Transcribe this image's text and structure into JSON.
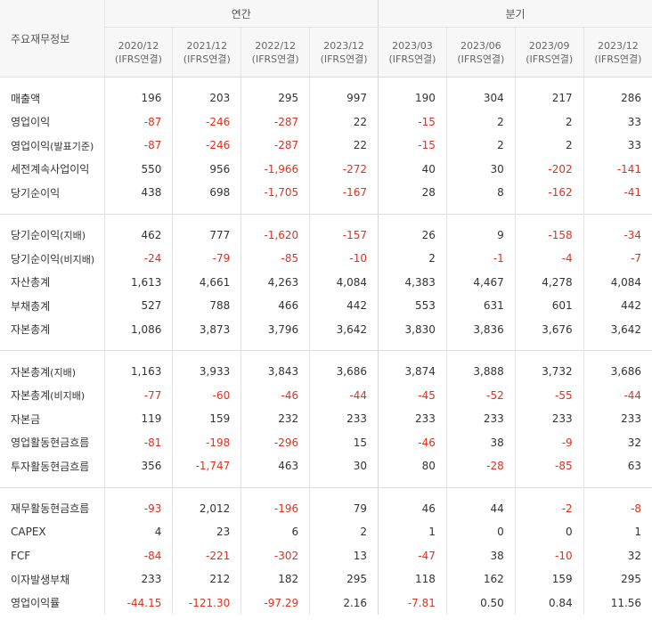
{
  "header": {
    "label": "주요재무정보",
    "annual": "연간",
    "quarterly": "분기",
    "periods": [
      {
        "date": "2020/12",
        "basis": "(IFRS연결)"
      },
      {
        "date": "2021/12",
        "basis": "(IFRS연결)"
      },
      {
        "date": "2022/12",
        "basis": "(IFRS연결)"
      },
      {
        "date": "2023/12",
        "basis": "(IFRS연결)"
      },
      {
        "date": "2023/03",
        "basis": "(IFRS연결)"
      },
      {
        "date": "2023/06",
        "basis": "(IFRS연결)"
      },
      {
        "date": "2023/09",
        "basis": "(IFRS연결)"
      },
      {
        "date": "2023/12",
        "basis": "(IFRS연결)"
      }
    ]
  },
  "colors": {
    "negative": "#e0301e",
    "text": "#333333",
    "header_bg": "#f7f7f7"
  },
  "groups": [
    {
      "rows": [
        {
          "label": "매출액",
          "sub": "",
          "values": [
            "196",
            "203",
            "295",
            "997",
            "190",
            "304",
            "217",
            "286"
          ]
        },
        {
          "label": "영업이익",
          "sub": "",
          "values": [
            "-87",
            "-246",
            "-287",
            "22",
            "-15",
            "2",
            "2",
            "33"
          ]
        },
        {
          "label": "영업이익",
          "sub": "(발표기준)",
          "values": [
            "-87",
            "-246",
            "-287",
            "22",
            "-15",
            "2",
            "2",
            "33"
          ]
        },
        {
          "label": "세전계속사업이익",
          "sub": "",
          "values": [
            "550",
            "956",
            "-1,966",
            "-272",
            "40",
            "30",
            "-202",
            "-141"
          ]
        },
        {
          "label": "당기순이익",
          "sub": "",
          "values": [
            "438",
            "698",
            "-1,705",
            "-167",
            "28",
            "8",
            "-162",
            "-41"
          ]
        }
      ]
    },
    {
      "rows": [
        {
          "label": "당기순이익",
          "sub": "(지배)",
          "values": [
            "462",
            "777",
            "-1,620",
            "-157",
            "26",
            "9",
            "-158",
            "-34"
          ]
        },
        {
          "label": "당기순이익",
          "sub": "(비지배)",
          "values": [
            "-24",
            "-79",
            "-85",
            "-10",
            "2",
            "-1",
            "-4",
            "-7"
          ]
        },
        {
          "label": "자산총계",
          "sub": "",
          "values": [
            "1,613",
            "4,661",
            "4,263",
            "4,084",
            "4,383",
            "4,467",
            "4,278",
            "4,084"
          ]
        },
        {
          "label": "부채총계",
          "sub": "",
          "values": [
            "527",
            "788",
            "466",
            "442",
            "553",
            "631",
            "601",
            "442"
          ]
        },
        {
          "label": "자본총계",
          "sub": "",
          "values": [
            "1,086",
            "3,873",
            "3,796",
            "3,642",
            "3,830",
            "3,836",
            "3,676",
            "3,642"
          ]
        }
      ]
    },
    {
      "rows": [
        {
          "label": "자본총계",
          "sub": "(지배)",
          "values": [
            "1,163",
            "3,933",
            "3,843",
            "3,686",
            "3,874",
            "3,888",
            "3,732",
            "3,686"
          ]
        },
        {
          "label": "자본총계",
          "sub": "(비지배)",
          "values": [
            "-77",
            "-60",
            "-46",
            "-44",
            "-45",
            "-52",
            "-55",
            "-44"
          ]
        },
        {
          "label": "자본금",
          "sub": "",
          "values": [
            "119",
            "159",
            "232",
            "233",
            "233",
            "233",
            "233",
            "233"
          ]
        },
        {
          "label": "영업활동현금흐름",
          "sub": "",
          "values": [
            "-81",
            "-198",
            "-296",
            "15",
            "-46",
            "38",
            "-9",
            "32"
          ]
        },
        {
          "label": "투자활동현금흐름",
          "sub": "",
          "values": [
            "356",
            "-1,747",
            "463",
            "30",
            "80",
            "-28",
            "-85",
            "63"
          ]
        }
      ]
    },
    {
      "rows": [
        {
          "label": "재무활동현금흐름",
          "sub": "",
          "values": [
            "-93",
            "2,012",
            "-196",
            "79",
            "46",
            "44",
            "-2",
            "-8"
          ]
        },
        {
          "label": "CAPEX",
          "sub": "",
          "values": [
            "4",
            "23",
            "6",
            "2",
            "1",
            "0",
            "0",
            "1"
          ]
        },
        {
          "label": "FCF",
          "sub": "",
          "values": [
            "-84",
            "-221",
            "-302",
            "13",
            "-47",
            "38",
            "-10",
            "32"
          ]
        },
        {
          "label": "이자발생부채",
          "sub": "",
          "values": [
            "233",
            "212",
            "182",
            "295",
            "118",
            "162",
            "159",
            "295"
          ]
        },
        {
          "label": "영업이익률",
          "sub": "",
          "values": [
            "-44.15",
            "-121.30",
            "-97.29",
            "2.16",
            "-7.81",
            "0.50",
            "0.84",
            "11.56"
          ]
        }
      ]
    }
  ]
}
